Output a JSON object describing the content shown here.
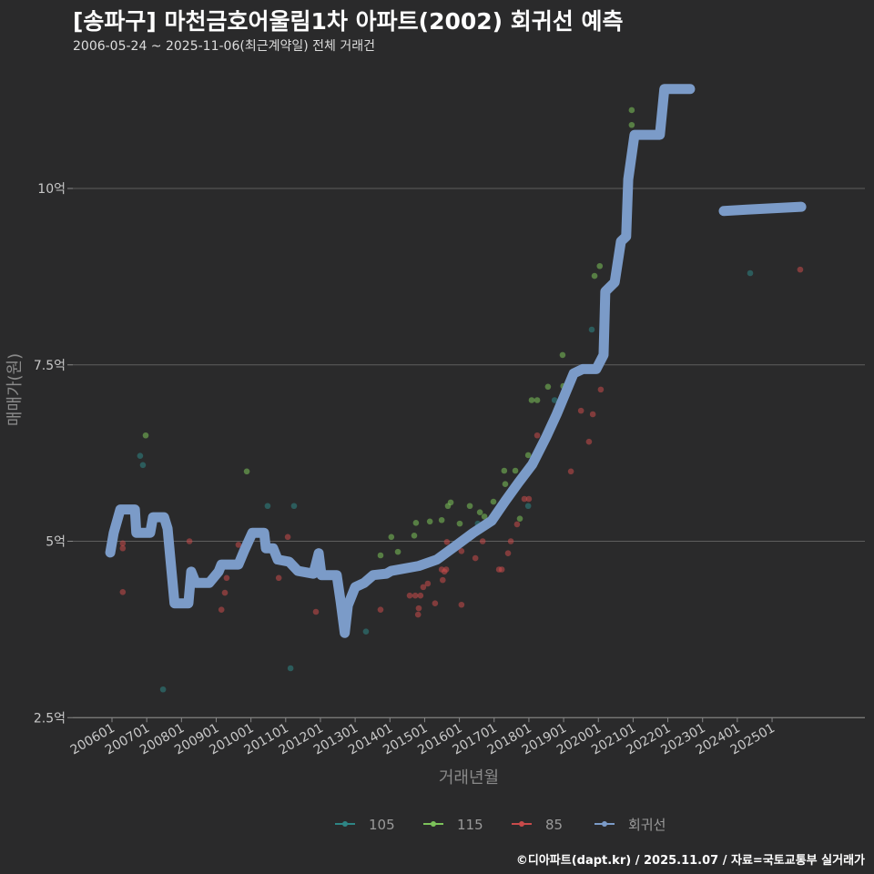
{
  "title": "[송파구] 마천금호어울림1차 아파트(2002) 회귀선 예측",
  "subtitle": "2006-05-24 ~ 2025-11-06(최근계약일) 전체 거래건",
  "credit": "©디아파트(dapt.kr) / 2025.11.07 / 자료=국토교통부 실거래가",
  "chart_data": {
    "type": "scatter",
    "xlabel": "거래년월",
    "ylabel": "매매가(원)",
    "ylim": [
      2.5,
      11.6
    ],
    "xlim": [
      2005.2,
      2028.8
    ],
    "yticks": [
      {
        "v": 2.5,
        "label": "2.5억"
      },
      {
        "v": 5,
        "label": "5억"
      },
      {
        "v": 7.5,
        "label": "7.5억"
      },
      {
        "v": 10,
        "label": "10억"
      }
    ],
    "xticks": [
      "200601",
      "200701",
      "200801",
      "200901",
      "201001",
      "201101",
      "201201",
      "201301",
      "201401",
      "201501",
      "201601",
      "201701",
      "201801",
      "201901",
      "202001",
      "202101",
      "202201",
      "202301",
      "202401",
      "202501"
    ],
    "grid": true,
    "legend_position": "bottom",
    "series": [
      {
        "name": "105",
        "color": "#2e8585",
        "points": [
          [
            2006.81,
            6.21
          ],
          [
            2006.89,
            6.08
          ],
          [
            2007.47,
            2.9
          ],
          [
            2010.48,
            5.5
          ],
          [
            2011.14,
            3.2
          ],
          [
            2011.24,
            5.5
          ],
          [
            2013.31,
            3.72
          ],
          [
            2015.88,
            4.97
          ],
          [
            2016.53,
            5.25
          ],
          [
            2017.98,
            5.5
          ],
          [
            2018.74,
            7.0
          ],
          [
            2019.81,
            8.0
          ],
          [
            2024.37,
            8.8
          ]
        ]
      },
      {
        "name": "115",
        "color": "#7cc25a",
        "points": [
          [
            2006.97,
            6.5
          ],
          [
            2009.88,
            5.99
          ],
          [
            2013.73,
            4.8
          ],
          [
            2014.04,
            5.06
          ],
          [
            2014.23,
            4.85
          ],
          [
            2014.7,
            5.08
          ],
          [
            2014.75,
            5.26
          ],
          [
            2015.15,
            5.28
          ],
          [
            2015.49,
            5.3
          ],
          [
            2015.67,
            5.5
          ],
          [
            2015.75,
            5.55
          ],
          [
            2016.01,
            5.25
          ],
          [
            2016.3,
            5.5
          ],
          [
            2016.59,
            5.41
          ],
          [
            2016.72,
            5.35
          ],
          [
            2016.98,
            5.56
          ],
          [
            2017.29,
            6.0
          ],
          [
            2017.32,
            5.81
          ],
          [
            2017.61,
            6.0
          ],
          [
            2017.74,
            5.32
          ],
          [
            2017.98,
            6.22
          ],
          [
            2018.08,
            7.0
          ],
          [
            2018.24,
            7.0
          ],
          [
            2018.55,
            7.19
          ],
          [
            2018.97,
            7.64
          ],
          [
            2018.99,
            7.2
          ],
          [
            2019.89,
            8.76
          ],
          [
            2020.04,
            8.9
          ],
          [
            2020.96,
            11.11
          ],
          [
            2020.96,
            10.9
          ]
        ]
      },
      {
        "name": "85",
        "color": "#c84a4a",
        "points": [
          [
            2006.31,
            4.28
          ],
          [
            2006.31,
            4.97
          ],
          [
            2006.31,
            4.9
          ],
          [
            2008.23,
            5.0
          ],
          [
            2009.15,
            4.03
          ],
          [
            2009.25,
            4.27
          ],
          [
            2009.3,
            4.48
          ],
          [
            2009.64,
            4.95
          ],
          [
            2010.8,
            4.48
          ],
          [
            2011.06,
            5.06
          ],
          [
            2011.87,
            4.0
          ],
          [
            2013.73,
            4.03
          ],
          [
            2014.57,
            4.23
          ],
          [
            2014.73,
            4.23
          ],
          [
            2014.83,
            4.05
          ],
          [
            2014.81,
            3.96
          ],
          [
            2014.88,
            4.23
          ],
          [
            2014.96,
            4.35
          ],
          [
            2015.09,
            4.4
          ],
          [
            2015.3,
            4.12
          ],
          [
            2015.49,
            4.6
          ],
          [
            2015.52,
            4.45
          ],
          [
            2015.57,
            4.57
          ],
          [
            2015.62,
            4.6
          ],
          [
            2015.64,
            4.99
          ],
          [
            2016.06,
            4.1
          ],
          [
            2016.06,
            4.86
          ],
          [
            2016.46,
            4.76
          ],
          [
            2016.67,
            5.0
          ],
          [
            2017.14,
            4.6
          ],
          [
            2017.22,
            4.6
          ],
          [
            2017.4,
            4.83
          ],
          [
            2017.48,
            5.0
          ],
          [
            2017.66,
            5.24
          ],
          [
            2017.87,
            5.6
          ],
          [
            2018.0,
            5.6
          ],
          [
            2018.24,
            6.5
          ],
          [
            2019.21,
            5.99
          ],
          [
            2019.5,
            6.85
          ],
          [
            2019.73,
            6.41
          ],
          [
            2019.84,
            6.8
          ],
          [
            2020.07,
            7.15
          ],
          [
            2025.81,
            8.85
          ]
        ]
      },
      {
        "name": "회귀선",
        "color": "#7b9bc8",
        "segments": [
          [
            [
              2005.95,
              4.84
            ],
            [
              2006.05,
              5.12
            ],
            [
              2006.24,
              5.45
            ],
            [
              2006.66,
              5.45
            ],
            [
              2006.7,
              5.12
            ],
            [
              2007.1,
              5.12
            ],
            [
              2007.18,
              5.34
            ],
            [
              2007.5,
              5.34
            ],
            [
              2007.6,
              5.18
            ],
            [
              2007.8,
              4.12
            ],
            [
              2008.2,
              4.12
            ],
            [
              2008.28,
              4.57
            ],
            [
              2008.41,
              4.41
            ],
            [
              2008.8,
              4.41
            ],
            [
              2009.07,
              4.57
            ],
            [
              2009.15,
              4.67
            ],
            [
              2009.64,
              4.67
            ],
            [
              2009.8,
              4.86
            ],
            [
              2010.04,
              5.12
            ],
            [
              2010.38,
              5.12
            ],
            [
              2010.43,
              4.9
            ],
            [
              2010.64,
              4.9
            ],
            [
              2010.77,
              4.74
            ],
            [
              2011.1,
              4.71
            ],
            [
              2011.35,
              4.58
            ],
            [
              2011.8,
              4.54
            ],
            [
              2011.95,
              4.83
            ],
            [
              2012.03,
              4.52
            ],
            [
              2012.47,
              4.52
            ],
            [
              2012.58,
              4.15
            ],
            [
              2012.7,
              3.7
            ],
            [
              2012.79,
              4.09
            ],
            [
              2013.0,
              4.35
            ],
            [
              2013.26,
              4.41
            ],
            [
              2013.52,
              4.52
            ],
            [
              2013.9,
              4.54
            ],
            [
              2014.04,
              4.58
            ],
            [
              2014.83,
              4.65
            ],
            [
              2015.35,
              4.74
            ],
            [
              2015.88,
              4.93
            ],
            [
              2016.4,
              5.12
            ],
            [
              2016.93,
              5.29
            ],
            [
              2017.32,
              5.57
            ],
            [
              2017.7,
              5.83
            ],
            [
              2018.1,
              6.09
            ],
            [
              2018.5,
              6.48
            ],
            [
              2018.8,
              6.8
            ],
            [
              2019.29,
              7.38
            ],
            [
              2019.55,
              7.44
            ],
            [
              2019.94,
              7.44
            ],
            [
              2020.15,
              7.64
            ],
            [
              2020.2,
              8.54
            ],
            [
              2020.47,
              8.67
            ],
            [
              2020.65,
              9.25
            ],
            [
              2020.8,
              9.32
            ],
            [
              2020.86,
              10.13
            ],
            [
              2021.04,
              10.76
            ],
            [
              2021.77,
              10.76
            ],
            [
              2021.9,
              11.41
            ],
            [
              2022.64,
              11.41
            ]
          ],
          [
            [
              2023.61,
              9.68
            ],
            [
              2024.27,
              9.7
            ],
            [
              2025.84,
              9.74
            ]
          ]
        ]
      }
    ]
  }
}
